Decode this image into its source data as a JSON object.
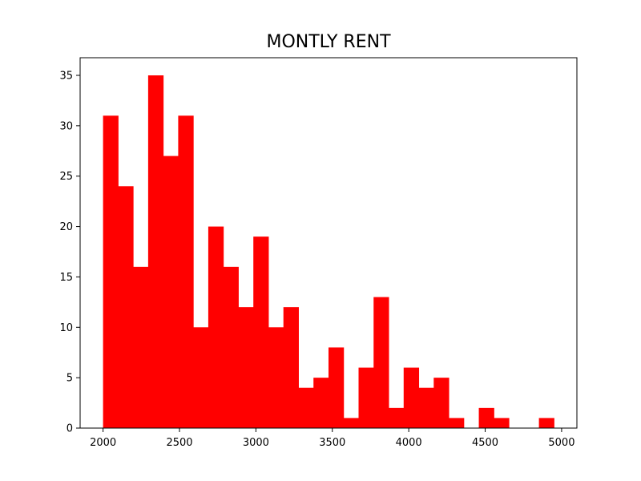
{
  "chart_data": {
    "type": "bar",
    "title": "MONTLY RENT",
    "xlabel": "",
    "ylabel": "",
    "bin_start": 2000,
    "bin_width": 98.33,
    "values": [
      31,
      24,
      16,
      35,
      27,
      31,
      10,
      20,
      16,
      12,
      19,
      10,
      12,
      4,
      5,
      8,
      1,
      6,
      13,
      2,
      6,
      4,
      5,
      1,
      0,
      2,
      1,
      0,
      0,
      1
    ],
    "xlim": [
      1850,
      5100
    ],
    "ylim": [
      0,
      36.75
    ],
    "x_ticks": [
      2000,
      2500,
      3000,
      3500,
      4000,
      4500,
      5000
    ],
    "y_ticks": [
      0,
      5,
      10,
      15,
      20,
      25,
      30,
      35
    ],
    "bar_color": "#ff0000",
    "grid": false,
    "legend": "none"
  }
}
